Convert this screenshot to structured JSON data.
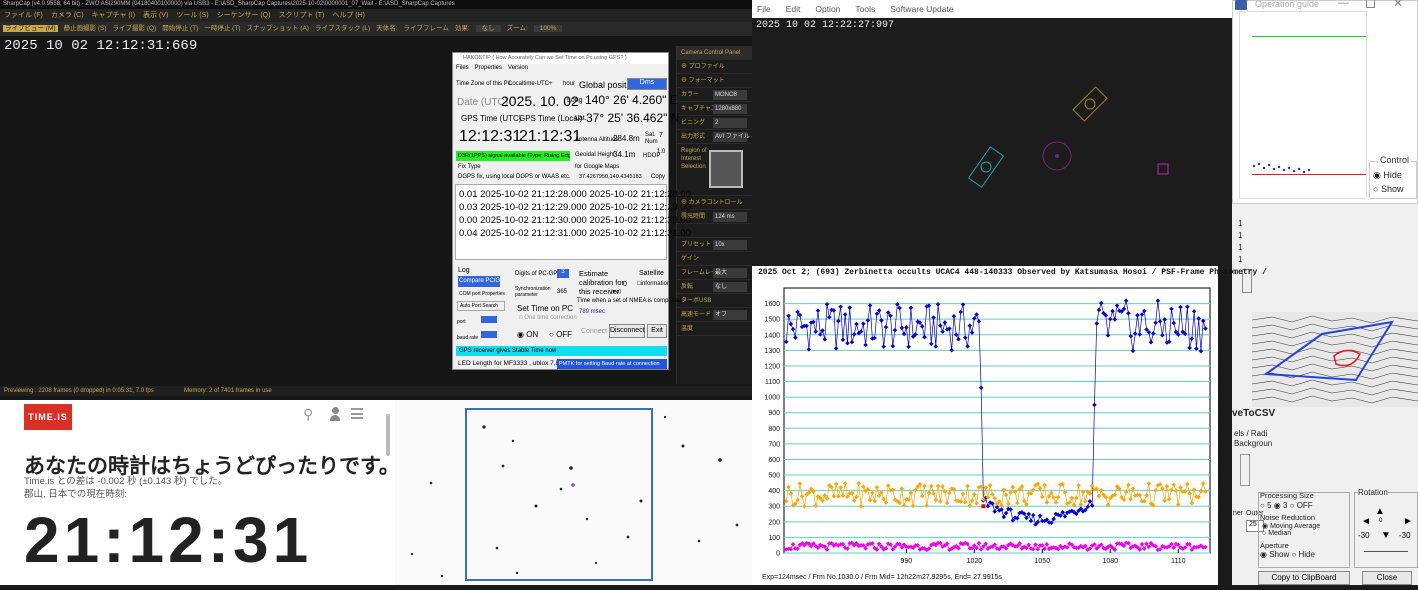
{
  "sharpcap": {
    "title": "SharpCap (v4.0.9558, 64 bit) - ZWO ASI290MM (04180400100000) via USB3 - E:\\ASD_SharpCap Captures\\2025-10-02\\0000001_07_Wait - E:\\ASD_SharpCap Captures",
    "menu": [
      "ファイル (F)",
      "カメラ (C)",
      "キャプチャ (I)",
      "表示 (V)",
      "ツール (S)",
      "シーケンサー (Q)",
      "スクリプト (T)",
      "ヘルプ (H)"
    ],
    "toolbar": [
      "ライブビュー (M)",
      "静止画撮影 (S)",
      "ライブ撮影 (Q)",
      "開始停止 (T)",
      "一時停止 (T)",
      "スナップショット (A)",
      "ライブスタック (L)",
      "天体名:",
      "ライブフレーム",
      "効果:",
      "なし",
      "ズーム:",
      "100%"
    ],
    "timestamp": "2025 10 02 12:12:31:669",
    "status_left": "Previewing : 2208 frames (0 dropped) in 0:05:31, 7.0 fps",
    "status_right": "Memory: 2 of 7401 frames in use",
    "panel_title": "Camera Control Panel",
    "panel_rows": [
      {
        "label": "プロファイル",
        "value": ""
      },
      {
        "label": "フォーマット",
        "value": ""
      },
      {
        "label": "カラー",
        "value": "MONO8"
      },
      {
        "label": "キャプチャエリア",
        "value": "1280x880"
      },
      {
        "label": "ビニング",
        "value": "2"
      },
      {
        "label": "出力形式",
        "value": "AVI ファイル (*.avi)"
      },
      {
        "label": "Region of Interest Selection",
        "value": ""
      },
      {
        "label": "カメラコントロール",
        "value": ""
      },
      {
        "label": "露出時間",
        "value": "124 ms"
      },
      {
        "label": "プリセット",
        "value": "10x"
      },
      {
        "label": "ゲイン",
        "value": ""
      },
      {
        "label": "フレームレート",
        "value": "最大"
      },
      {
        "label": "反転",
        "value": "なし"
      },
      {
        "label": "ターボUSB",
        "value": ""
      },
      {
        "label": "高速モード",
        "value": "オフ"
      },
      {
        "label": "温度",
        "value": ""
      }
    ]
  },
  "hako": {
    "title": "HAKOSTIP ( How Accurately Can we Set Time on Pc using GPS? )",
    "menu": [
      "Files",
      "Properties",
      "Version"
    ],
    "tz_label": "Time Zone of this PC",
    "tz_value": "Localtime-UTC+",
    "tz_unit": "hour",
    "global_position": "Global position",
    "global_mode": "Dms",
    "date_label": "Date (UTC)",
    "date_value": "2025. 10. 02",
    "long_label": "Long",
    "long_value": "140° 26' 4.260\" E",
    "gps_utc_label": "GPS Time (UTC)",
    "gps_local_label": "GPS Time (Local)",
    "lat_label": "Lat.",
    "lat_value": "37° 25' 36.462\" N",
    "gps_utc": "12:12:31",
    "gps_local": "21:12:31",
    "ant_label": "Antenna Altitude",
    "ant_value": "284.8m",
    "sat_label": "Sat. Num",
    "sat_value": "7",
    "signal": "D3R(1PPS) signal available (Type: Rising Edge)",
    "geoid_label": "Geoidal Height",
    "geoid_value": "34.1m",
    "hdop_label": "HDOP",
    "hdop_value": "1.0",
    "fix_label": "Fix Type",
    "gmaps_label": "for Google Maps",
    "fix_value": "DGPS fix, using local DGPS or WAAS etc.",
    "gmaps_value": "37.4267950,140.4345183",
    "copy": "Copy",
    "log_rows": [
      "0.01  2025-10-02 21:12:28.000  2025-10-02 21:12:28.00",
      "0.03  2025-10-02 21:12:29.000  2025-10-02 21:12:29.00",
      "0.00  2025-10-02 21:12:30.000  2025-10-02 21:12:30.00",
      "0.04  2025-10-02 21:12:31.000  2025-10-02 21:12:31.00"
    ],
    "log_label": "Log",
    "compare": "Compare PC/GPS",
    "com_props": "COM port Properties",
    "auto_port": "Auto Port Search",
    "digits_label": "Digits of PC-GPS",
    "digits_value": "3",
    "sync_label": "Synchronization parameter",
    "sync_value": "365",
    "set_time": "Set Time on PC",
    "one_time": "One time correction",
    "on": "ON",
    "off": "OFF",
    "estimate": "Estimate calibration for this receiver",
    "estimate_val": "0",
    "estimate_unit": "(ms)",
    "satellite": "Satellite",
    "information": "information",
    "nmea_label": "Time when a set of NMEA is completed",
    "nmea_value": "789 msec",
    "port": "port",
    "baud": "baud rate",
    "connect": "Connect",
    "disconnect": "Disconnect",
    "exit": "Exit",
    "stable": "GPS receiver gives Stable Time now",
    "led": "LED Length for MF3333 , ublox 7,8",
    "pmtk": "PMTK for setting Baud rate at connection"
  },
  "timeis": {
    "logo": "TIME.IS",
    "headline": "あなたの時計はちょうどぴったりです。",
    "sub1": "Time.is との差は -0.002 秒 (±0.143 秒) でした。",
    "sub2": "郡山, 日本での現在時刻:",
    "clock": "21:12:31"
  },
  "limovie": {
    "menu": [
      "File",
      "Edit",
      "Option",
      "Tools",
      "Software Update"
    ],
    "timestamp": "2025 10 02 12:22:27:997"
  },
  "opguide": {
    "title": "Operation guide",
    "control": "Control",
    "hide": "Hide",
    "show": "Show"
  },
  "rightpanel": {
    "save_csv": "veToCSV",
    "labels_radii": "els / Radi",
    "background": "Backgroun",
    "outer": "Outer",
    "outer_val": "25",
    "ner": "ner",
    "processing_size": "Processing Size",
    "ps_options": [
      "5",
      "3",
      "OFF"
    ],
    "rotation": "Rotation",
    "noise_reduction": "Noise Reduction",
    "nr_options": [
      "Moving Average",
      "Median"
    ],
    "aperture": "Aperture",
    "ap_options": [
      "Show",
      "Hide"
    ],
    "rot_vals": [
      "-30",
      "0",
      "-30"
    ],
    "copy_clip": "Copy to ClipBoard",
    "close": "Close",
    "side_vals": [
      "1",
      "1",
      "1",
      "1"
    ]
  },
  "chart_data": {
    "type": "scatter",
    "title": "2025 Oct 2; (693) Zerbinetta occults UCAC4 448-140333 Observed by Katsumasa Hosoi / PSF-Frame Photometry /",
    "footer": "Exp=124msec / Frm No.1030.0 / Frm Mid= 12h22m27.9295s, End= 27.9915s",
    "xlabel": "",
    "ylabel": "",
    "xlim": [
      936,
      1124
    ],
    "ylim": [
      0,
      1700
    ],
    "xticks": [
      990,
      1020,
      1050,
      1080,
      1110
    ],
    "yticks": [
      0,
      100,
      200,
      300,
      400,
      500,
      600,
      700,
      800,
      900,
      1000,
      1100,
      1200,
      1300,
      1400,
      1500,
      1600
    ],
    "grid": true,
    "colors": {
      "star": "#0000dd",
      "comparison": "#ffa500",
      "background": "#ee00ee",
      "event": "#ff0000"
    },
    "series": []
  }
}
